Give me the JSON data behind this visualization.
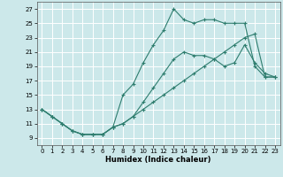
{
  "title": "",
  "xlabel": "Humidex (Indice chaleur)",
  "ylabel": "",
  "xlim": [
    -0.5,
    23.5
  ],
  "ylim": [
    8.0,
    28.0
  ],
  "yticks": [
    9,
    11,
    13,
    15,
    17,
    19,
    21,
    23,
    25,
    27
  ],
  "xticks": [
    0,
    1,
    2,
    3,
    4,
    5,
    6,
    7,
    8,
    9,
    10,
    11,
    12,
    13,
    14,
    15,
    16,
    17,
    18,
    19,
    20,
    21,
    22,
    23
  ],
  "line_color": "#2e7d6e",
  "bg_color": "#cce8ea",
  "grid_color": "#ffffff",
  "line1_x": [
    0,
    1,
    2,
    3,
    4,
    5,
    6,
    7,
    8,
    9,
    10,
    11,
    12,
    13,
    14,
    15,
    16,
    17,
    18,
    19,
    20,
    21,
    22,
    23
  ],
  "line1_y": [
    13,
    12,
    11,
    10,
    9.5,
    9.5,
    9.5,
    10.5,
    11,
    12,
    14,
    16,
    18,
    20,
    21,
    20.5,
    20.5,
    20,
    19,
    19.5,
    22,
    19.5,
    18,
    17.5
  ],
  "line2_x": [
    0,
    1,
    2,
    3,
    4,
    5,
    6,
    7,
    8,
    9,
    10,
    11,
    12,
    13,
    14,
    15,
    16,
    17,
    18,
    19,
    20,
    21,
    22,
    23
  ],
  "line2_y": [
    13,
    12,
    11,
    10,
    9.5,
    9.5,
    9.5,
    10.5,
    15,
    16.5,
    19.5,
    22,
    24,
    27,
    25.5,
    25,
    25.5,
    25.5,
    25,
    25,
    25,
    19,
    17.5,
    17.5
  ],
  "line3_x": [
    0,
    1,
    2,
    3,
    4,
    5,
    6,
    7,
    8,
    9,
    10,
    11,
    12,
    13,
    14,
    15,
    16,
    17,
    18,
    19,
    20,
    21,
    22,
    23
  ],
  "line3_y": [
    13,
    12,
    11,
    10,
    9.5,
    9.5,
    9.5,
    10.5,
    11,
    12,
    13,
    14,
    15,
    16,
    17,
    18,
    19,
    20,
    21,
    22,
    23,
    23.5,
    17.5,
    17.5
  ]
}
